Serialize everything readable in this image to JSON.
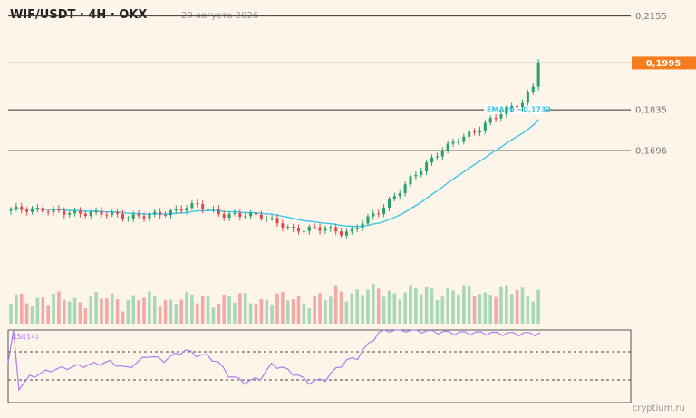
{
  "header": {
    "title": "WIF/USDT · 4H · OKX",
    "date": "29 августа 2026"
  },
  "watermark": "cryptium.ru",
  "colors": {
    "up": "#26a269",
    "down": "#e04848",
    "vol_up": "#a8d8b9",
    "vol_down": "#f2aaa6",
    "ema": "#3ec6e8",
    "rsi": "#b27cf0",
    "price_badge": "#f57c1f",
    "level": "#333333",
    "bg": "#fdf5ea"
  },
  "chart_data": [
    {
      "type": "candlestick",
      "title": "WIF/USDT · 4H · OKX",
      "ylim": [
        0.127,
        0.216
      ],
      "levels": [
        {
          "value": 0.2155,
          "label": "0,2155"
        },
        {
          "value": 0.1835,
          "label": "0,1835"
        },
        {
          "value": 0.1696,
          "label": "0,1696"
        }
      ],
      "last_price": {
        "value": 0.1995,
        "label": "0,1995"
      },
      "ema": {
        "name": "EMA20",
        "label": "EMA20 ~0,1732",
        "value": 0.1732
      },
      "series_ohlc_count": 100
    },
    {
      "type": "bar",
      "name": "volume"
    },
    {
      "type": "line",
      "name": "RSI(14)",
      "label": "RSI(14)",
      "ylim": [
        0,
        100
      ],
      "levels": [
        70,
        30
      ]
    }
  ]
}
